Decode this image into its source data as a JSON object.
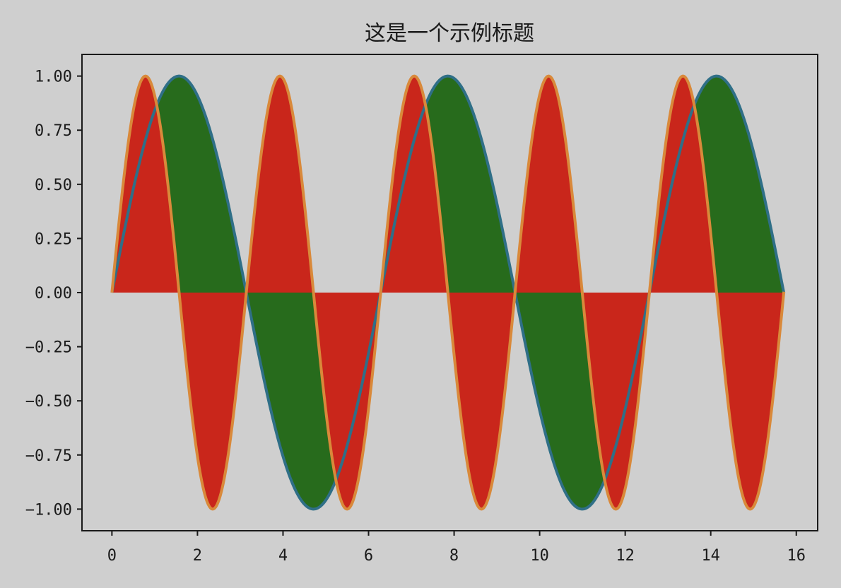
{
  "chart_data": {
    "type": "area",
    "title": "这是一个示例标题",
    "xlabel": "",
    "ylabel": "",
    "xlim": [
      -0.7,
      16.5
    ],
    "ylim": [
      -1.1,
      1.1
    ],
    "x_ticks": [
      0,
      2,
      4,
      6,
      8,
      10,
      12,
      14,
      16
    ],
    "x_tick_labels": [
      "0",
      "2",
      "4",
      "6",
      "8",
      "10",
      "12",
      "14",
      "16"
    ],
    "y_ticks": [
      1.0,
      0.75,
      0.5,
      0.25,
      0.0,
      -0.25,
      -0.5,
      -0.75,
      -1.0
    ],
    "y_tick_labels": [
      "1.00",
      "0.75",
      "0.50",
      "0.25",
      "0.00",
      "−0.25",
      "−0.50",
      "−0.75",
      "−1.00"
    ],
    "x_range": [
      0,
      15.71
    ],
    "grid": false,
    "legend": "none",
    "series": [
      {
        "function": "sin(x)",
        "line_color": "#2f6f87",
        "fill_color": "#276b1c",
        "fill_to": 0
      },
      {
        "function": "sin(2x)",
        "line_color": "#d9893a",
        "fill_color": "#c9261b",
        "fill_to": 0
      }
    ],
    "background_color": "#cfcfcf"
  }
}
